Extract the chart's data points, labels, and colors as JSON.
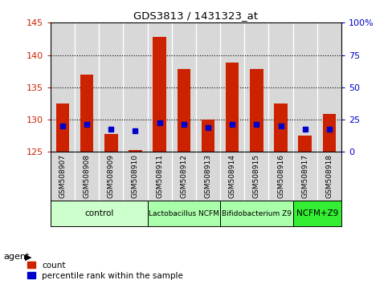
{
  "title": "GDS3813 / 1431323_at",
  "samples": [
    "GSM508907",
    "GSM508908",
    "GSM508909",
    "GSM508910",
    "GSM508911",
    "GSM508912",
    "GSM508913",
    "GSM508914",
    "GSM508915",
    "GSM508916",
    "GSM508917",
    "GSM508918"
  ],
  "count_values": [
    132.5,
    137.0,
    127.8,
    125.2,
    142.8,
    137.8,
    130.0,
    138.8,
    137.8,
    132.5,
    127.5,
    130.8
  ],
  "percentile_values": [
    129.0,
    129.2,
    128.5,
    128.2,
    129.5,
    129.2,
    128.8,
    129.2,
    129.2,
    129.0,
    128.5,
    128.5
  ],
  "ylim_left": [
    125,
    145
  ],
  "ylim_right": [
    0,
    100
  ],
  "yticks_left": [
    125,
    130,
    135,
    140,
    145
  ],
  "yticks_right": [
    0,
    25,
    50,
    75,
    100
  ],
  "ytick_labels_right": [
    "0",
    "25",
    "50",
    "75",
    "100%"
  ],
  "bar_color": "#cc2200",
  "percentile_color": "#0000cc",
  "bar_base": 125,
  "bar_width": 0.55,
  "group_colors": [
    "#ccffcc",
    "#aaffaa",
    "#aaffaa",
    "#33ee33"
  ],
  "group_labels": [
    "control",
    "Lactobacillus NCFM",
    "Bifidobacterium Z9",
    "NCFM+Z9"
  ],
  "group_ranges": [
    [
      0,
      3
    ],
    [
      4,
      6
    ],
    [
      7,
      9
    ],
    [
      10,
      11
    ]
  ],
  "tick_color_left": "#cc2200",
  "tick_color_right": "#0000cc",
  "legend_items": [
    "count",
    "percentile rank within the sample"
  ],
  "legend_colors": [
    "#cc2200",
    "#0000cc"
  ],
  "sample_col_color": "#d8d8d8"
}
